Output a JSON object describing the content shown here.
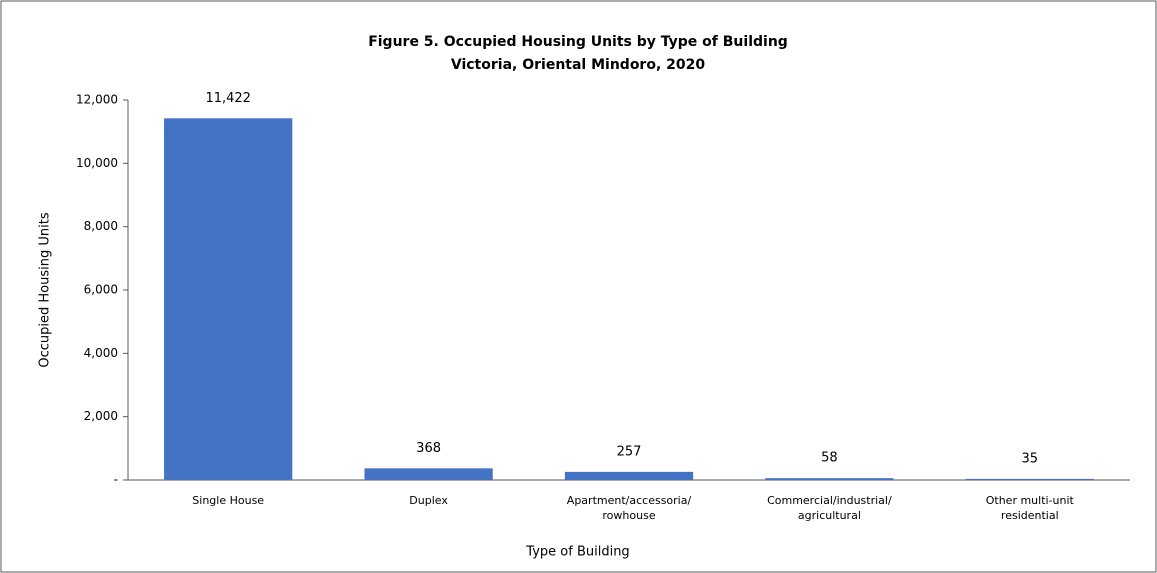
{
  "chart_data": {
    "type": "bar",
    "title": "Figure 5. Occupied Housing Units by Type of Building",
    "subtitle": "Victoria, Oriental Mindoro, 2020",
    "x_label": "Type of Building",
    "y_label": "Occupied Housing Units",
    "categories": [
      "Single House",
      "Duplex",
      "Apartment/accessoria/\nrowhouse",
      "Commercial/industrial/\nagricultural",
      "Other multi-unit\nresidential"
    ],
    "values": [
      11422,
      368,
      257,
      58,
      35
    ],
    "value_labels": [
      "11,422",
      "368",
      "257",
      "58",
      "35"
    ],
    "color": "#4472c4",
    "ylim": [
      0,
      12000
    ],
    "yticks": [
      {
        "value": 0,
        "label": "-"
      },
      {
        "value": 2000,
        "label": "2,000"
      },
      {
        "value": 4000,
        "label": "4,000"
      },
      {
        "value": 6000,
        "label": "6,000"
      },
      {
        "value": 8000,
        "label": "8,000"
      },
      {
        "value": 10000,
        "label": "10,000"
      },
      {
        "value": 12000,
        "label": "12,000"
      }
    ],
    "grid": false
  }
}
